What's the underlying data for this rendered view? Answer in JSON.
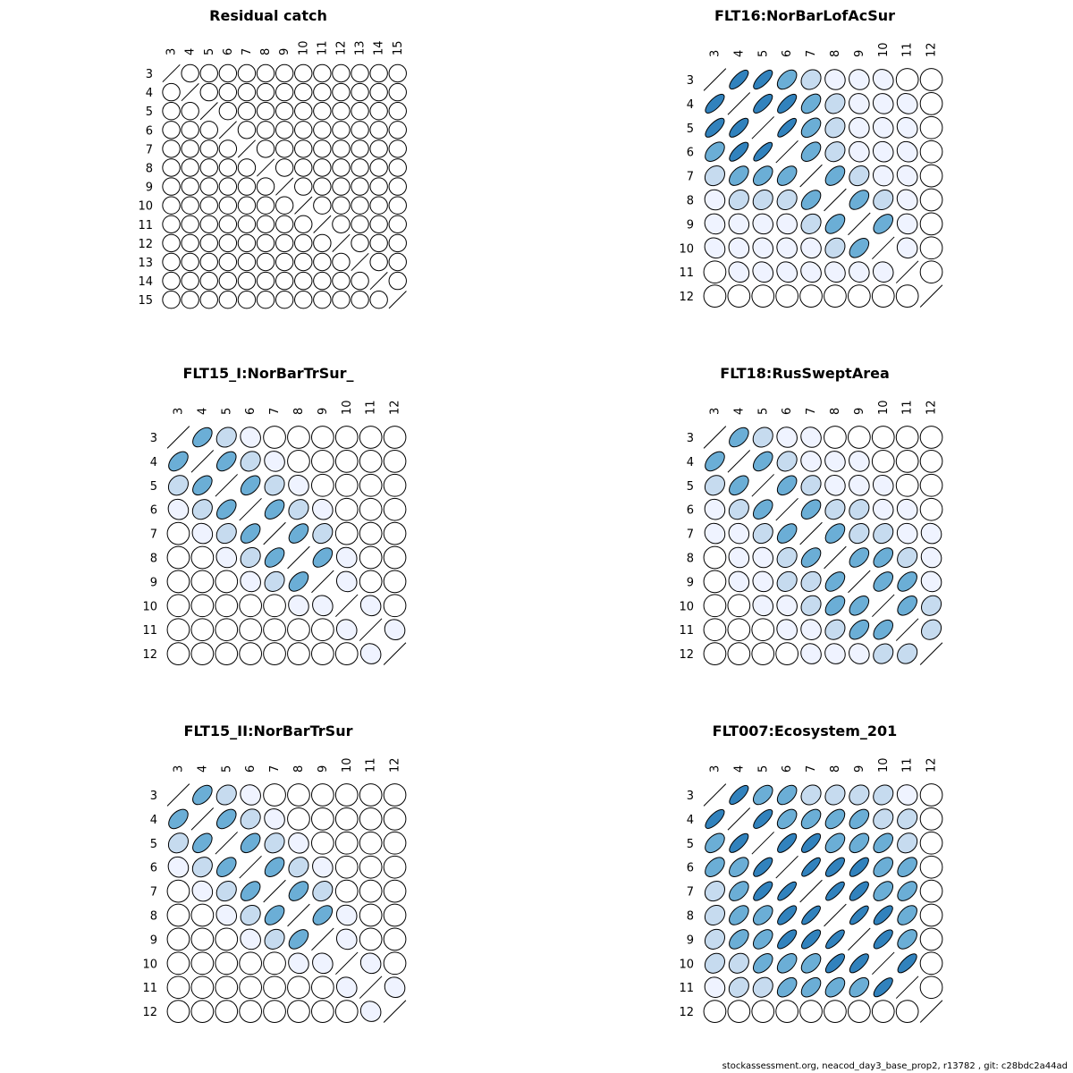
{
  "footer": "stockassessment.org, neacod_day3_base_prop2, r13782 , git: c28bdc2a44ad",
  "chart_data": [
    {
      "type": "correlation-ellipse-matrix",
      "title": "Residual catch",
      "ages": [
        3,
        4,
        5,
        6,
        7,
        8,
        9,
        10,
        11,
        12,
        13,
        14,
        15
      ],
      "correlation": [
        [
          1,
          0,
          0,
          0,
          0,
          0,
          0,
          0,
          0,
          0,
          0,
          0,
          0
        ],
        [
          0,
          1,
          0,
          0,
          0,
          0,
          0,
          0,
          0,
          0,
          0,
          0,
          0
        ],
        [
          0,
          0,
          1,
          0,
          0,
          0,
          0,
          0,
          0,
          0,
          0,
          0,
          0
        ],
        [
          0,
          0,
          0,
          1,
          0,
          0,
          0,
          0,
          0,
          0,
          0,
          0,
          0
        ],
        [
          0,
          0,
          0,
          0,
          1,
          0,
          0,
          0,
          0,
          0,
          0,
          0,
          0
        ],
        [
          0,
          0,
          0,
          0,
          0,
          1,
          0,
          0,
          0,
          0,
          0,
          0,
          0
        ],
        [
          0,
          0,
          0,
          0,
          0,
          0,
          1,
          0,
          0,
          0,
          0,
          0,
          0
        ],
        [
          0,
          0,
          0,
          0,
          0,
          0,
          0,
          1,
          0,
          0,
          0,
          0,
          0
        ],
        [
          0,
          0,
          0,
          0,
          0,
          0,
          0,
          0,
          1,
          0,
          0,
          0,
          0
        ],
        [
          0,
          0,
          0,
          0,
          0,
          0,
          0,
          0,
          0,
          1,
          0,
          0,
          0
        ],
        [
          0,
          0,
          0,
          0,
          0,
          0,
          0,
          0,
          0,
          0,
          1,
          0,
          0
        ],
        [
          0,
          0,
          0,
          0,
          0,
          0,
          0,
          0,
          0,
          0,
          0,
          1,
          0
        ],
        [
          0,
          0,
          0,
          0,
          0,
          0,
          0,
          0,
          0,
          0,
          0,
          0,
          1
        ]
      ]
    },
    {
      "type": "correlation-ellipse-matrix",
      "title": "FLT16:NorBarLofAcSur",
      "ages": [
        3,
        4,
        5,
        6,
        7,
        8,
        9,
        10,
        11,
        12
      ],
      "correlation": [
        [
          1,
          0.8,
          0.8,
          0.6,
          0.35,
          0.12,
          0.1,
          0.05,
          0,
          0
        ],
        [
          0.8,
          1,
          0.8,
          0.8,
          0.6,
          0.35,
          0.12,
          0.1,
          0.05,
          0
        ],
        [
          0.8,
          0.8,
          1,
          0.85,
          0.6,
          0.35,
          0.12,
          0.1,
          0.05,
          0
        ],
        [
          0.6,
          0.8,
          0.85,
          1,
          0.6,
          0.35,
          0.12,
          0.1,
          0.05,
          0
        ],
        [
          0.35,
          0.6,
          0.6,
          0.6,
          1,
          0.6,
          0.35,
          0.12,
          0.05,
          0
        ],
        [
          0.12,
          0.35,
          0.35,
          0.35,
          0.6,
          1,
          0.6,
          0.35,
          0.05,
          0
        ],
        [
          0.1,
          0.12,
          0.12,
          0.12,
          0.35,
          0.6,
          1,
          0.6,
          0.12,
          0
        ],
        [
          0.05,
          0.1,
          0.1,
          0.1,
          0.12,
          0.35,
          0.6,
          1,
          0.12,
          0
        ],
        [
          0,
          0.05,
          0.05,
          0.05,
          0.05,
          0.05,
          0.12,
          0.12,
          1,
          0
        ],
        [
          0,
          0,
          0,
          0,
          0,
          0,
          0,
          0,
          0,
          1
        ]
      ]
    },
    {
      "type": "correlation-ellipse-matrix",
      "title": "FLT15_I:NorBarTrSur_",
      "ages": [
        3,
        4,
        5,
        6,
        7,
        8,
        9,
        10,
        11,
        12
      ],
      "correlation": [
        [
          1,
          0.6,
          0.35,
          0.1,
          0,
          0,
          0,
          0,
          0,
          0
        ],
        [
          0.6,
          1,
          0.6,
          0.35,
          0.1,
          0,
          0,
          0,
          0,
          0
        ],
        [
          0.35,
          0.6,
          1,
          0.6,
          0.35,
          0.1,
          0,
          0,
          0,
          0
        ],
        [
          0.1,
          0.35,
          0.6,
          1,
          0.6,
          0.35,
          0.1,
          0,
          0,
          0
        ],
        [
          0,
          0.1,
          0.35,
          0.6,
          1,
          0.6,
          0.35,
          0,
          0,
          0
        ],
        [
          0,
          0,
          0.1,
          0.35,
          0.6,
          1,
          0.6,
          0.1,
          0,
          0
        ],
        [
          0,
          0,
          0,
          0.1,
          0.35,
          0.6,
          1,
          0.1,
          0,
          0
        ],
        [
          0,
          0,
          0,
          0,
          0,
          0.1,
          0.1,
          1,
          0.1,
          0
        ],
        [
          0,
          0,
          0,
          0,
          0,
          0,
          0,
          0.1,
          1,
          0.1
        ],
        [
          0,
          0,
          0,
          0,
          0,
          0,
          0,
          0,
          0.1,
          1
        ]
      ]
    },
    {
      "type": "correlation-ellipse-matrix",
      "title": "FLT18:RusSweptArea",
      "ages": [
        3,
        4,
        5,
        6,
        7,
        8,
        9,
        10,
        11,
        12
      ],
      "correlation": [
        [
          1,
          0.6,
          0.35,
          0.12,
          0.1,
          0,
          0,
          0,
          0,
          0
        ],
        [
          0.6,
          1,
          0.6,
          0.35,
          0.1,
          0.1,
          0.1,
          0,
          0,
          0
        ],
        [
          0.35,
          0.6,
          1,
          0.6,
          0.35,
          0.12,
          0.1,
          0.1,
          0,
          0
        ],
        [
          0.12,
          0.35,
          0.6,
          1,
          0.6,
          0.35,
          0.35,
          0.12,
          0.1,
          0
        ],
        [
          0.1,
          0.12,
          0.35,
          0.6,
          1,
          0.6,
          0.35,
          0.35,
          0.12,
          0.1
        ],
        [
          0,
          0.1,
          0.12,
          0.35,
          0.6,
          1,
          0.6,
          0.6,
          0.35,
          0.1
        ],
        [
          0,
          0.1,
          0.12,
          0.35,
          0.35,
          0.6,
          1,
          0.6,
          0.6,
          0.1
        ],
        [
          0,
          0,
          0.1,
          0.12,
          0.35,
          0.6,
          0.6,
          1,
          0.6,
          0.35
        ],
        [
          0,
          0,
          0,
          0.1,
          0.12,
          0.35,
          0.6,
          0.6,
          1,
          0.35
        ],
        [
          0,
          0,
          0,
          0,
          0.1,
          0.1,
          0.1,
          0.35,
          0.35,
          1
        ]
      ]
    },
    {
      "type": "correlation-ellipse-matrix",
      "title": "FLT15_II:NorBarTrSur",
      "ages": [
        3,
        4,
        5,
        6,
        7,
        8,
        9,
        10,
        11,
        12
      ],
      "correlation": [
        [
          1,
          0.6,
          0.35,
          0.1,
          0,
          0,
          0,
          0,
          0,
          0
        ],
        [
          0.6,
          1,
          0.6,
          0.35,
          0.1,
          0,
          0,
          0,
          0,
          0
        ],
        [
          0.35,
          0.6,
          1,
          0.6,
          0.35,
          0.1,
          0,
          0,
          0,
          0
        ],
        [
          0.1,
          0.35,
          0.6,
          1,
          0.6,
          0.35,
          0.1,
          0,
          0,
          0
        ],
        [
          0,
          0.1,
          0.35,
          0.6,
          1,
          0.6,
          0.35,
          0,
          0,
          0
        ],
        [
          0,
          0,
          0.1,
          0.35,
          0.6,
          1,
          0.6,
          0.1,
          0,
          0
        ],
        [
          0,
          0,
          0,
          0.1,
          0.35,
          0.6,
          1,
          0.1,
          0,
          0
        ],
        [
          0,
          0,
          0,
          0,
          0,
          0.1,
          0.1,
          1,
          0.1,
          0
        ],
        [
          0,
          0,
          0,
          0,
          0,
          0,
          0,
          0.1,
          1,
          0.1
        ],
        [
          0,
          0,
          0,
          0,
          0,
          0,
          0,
          0,
          0.1,
          1
        ]
      ]
    },
    {
      "type": "correlation-ellipse-matrix",
      "title": "FLT007:Ecosystem_201",
      "ages": [
        3,
        4,
        5,
        6,
        7,
        8,
        9,
        10,
        11,
        12
      ],
      "correlation": [
        [
          1,
          0.8,
          0.6,
          0.6,
          0.35,
          0.35,
          0.35,
          0.35,
          0.12,
          0
        ],
        [
          0.8,
          1,
          0.8,
          0.6,
          0.6,
          0.6,
          0.6,
          0.35,
          0.35,
          0
        ],
        [
          0.6,
          0.8,
          1,
          0.8,
          0.8,
          0.6,
          0.6,
          0.6,
          0.35,
          0
        ],
        [
          0.6,
          0.6,
          0.8,
          1,
          0.85,
          0.8,
          0.8,
          0.6,
          0.6,
          0
        ],
        [
          0.35,
          0.6,
          0.8,
          0.85,
          1,
          0.85,
          0.8,
          0.6,
          0.6,
          0
        ],
        [
          0.35,
          0.6,
          0.6,
          0.8,
          0.85,
          1,
          0.85,
          0.8,
          0.6,
          0
        ],
        [
          0.35,
          0.6,
          0.6,
          0.8,
          0.8,
          0.85,
          1,
          0.8,
          0.6,
          0
        ],
        [
          0.35,
          0.35,
          0.6,
          0.6,
          0.6,
          0.8,
          0.8,
          1,
          0.8,
          0
        ],
        [
          0.12,
          0.35,
          0.35,
          0.6,
          0.6,
          0.6,
          0.6,
          0.8,
          1,
          0
        ],
        [
          0,
          0,
          0,
          0,
          0,
          0,
          0,
          0,
          0,
          1
        ]
      ]
    }
  ]
}
